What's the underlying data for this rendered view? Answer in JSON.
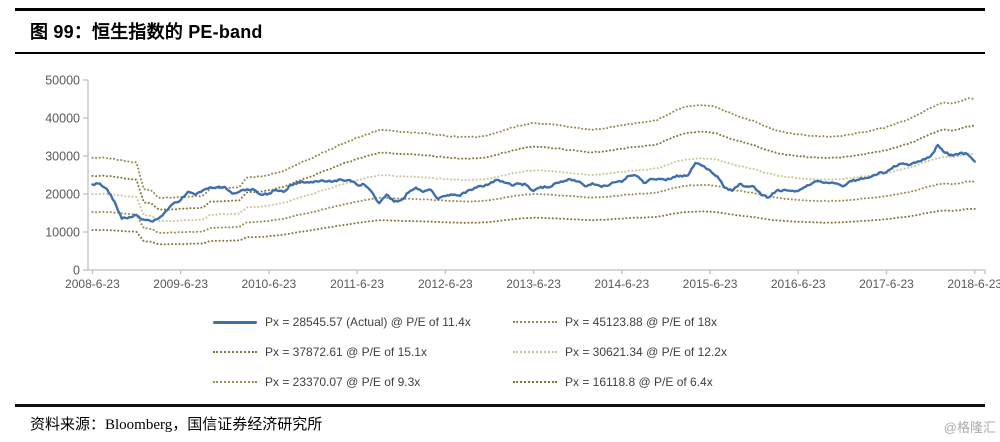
{
  "figure": {
    "title": "图 99：恒生指数的 PE-band"
  },
  "colors": {
    "actual_line": "#3f6fad",
    "band_18x": "#98894c",
    "band_15_1x": "#85763a",
    "band_12_2x": "#cec397",
    "band_9_3x": "#9a8b4e",
    "band_6_4x": "#85763a",
    "axis": "#bfbfbf",
    "axis_label": "#595959"
  },
  "legend": {
    "items": [
      {
        "label": "Px = 28545.57 (Actual) @ P/E of 11.4x",
        "style": "solid",
        "color": "#3f6fad"
      },
      {
        "label": "Px = 45123.88 @ P/E of 18x",
        "style": "dotted",
        "color": "#98894c"
      },
      {
        "label": "Px = 37872.61 @ P/E of 15.1x",
        "style": "dotted",
        "color": "#85763a"
      },
      {
        "label": "Px = 30621.34 @ P/E of 12.2x",
        "style": "dotted",
        "color": "#cec397"
      },
      {
        "label": "Px = 23370.07 @ P/E of 9.3x",
        "style": "dotted",
        "color": "#9a8b4e"
      },
      {
        "label": "Px = 16118.8 @ P/E of 6.4x",
        "style": "dotted",
        "color": "#85763a"
      }
    ]
  },
  "footer": {
    "source": "资料来源：Bloomberg，国信证券经济研究所",
    "watermark": "@格隆汇"
  },
  "chart_data": {
    "type": "line",
    "title": "恒生指数的 PE-band",
    "xlabel": "",
    "ylabel": "",
    "ylim": [
      0,
      50000
    ],
    "y_ticks": [
      0,
      10000,
      20000,
      30000,
      40000,
      50000
    ],
    "x_tick_labels": [
      "2008-6-23",
      "2009-6-23",
      "2010-6-23",
      "2011-6-23",
      "2012-6-23",
      "2013-6-23",
      "2014-6-23",
      "2015-6-23",
      "2016-6-23",
      "2017-6-23",
      "2018-6-23"
    ],
    "grid": false,
    "legend_position": "bottom",
    "sampling": "monthly from 2008-06 to 2018-06 (121 points)",
    "band_multiples": [
      18,
      15.1,
      12.2,
      9.3,
      6.4
    ],
    "band_colors": [
      "#98894c",
      "#85763a",
      "#cec397",
      "#9a8b4e",
      "#85763a"
    ],
    "series": [
      {
        "name": "Px (Actual) @ P/E of 11.4x",
        "style": "solid",
        "color": "#3f6fad",
        "end_value": 28545.57,
        "values": [
          22500,
          22731,
          21261,
          18016,
          13500,
          13888,
          14387,
          13278,
          12812,
          13576,
          15521,
          17500,
          18378,
          20573,
          19724,
          20955,
          21753,
          21821,
          21873,
          20122,
          20608,
          21239,
          21109,
          19765,
          20129,
          21030,
          20537,
          22358,
          23096,
          23007,
          23035,
          23447,
          23338,
          23528,
          23721,
          23684,
          22398,
          22440,
          20535,
          17592,
          19865,
          17989,
          18434,
          20390,
          21680,
          20556,
          21094,
          18629,
          19441,
          19796,
          19482,
          20840,
          21641,
          22030,
          22656,
          23729,
          23020,
          22299,
          22737,
          22392,
          20803,
          21883,
          21731,
          22859,
          23206,
          23881,
          23306,
          22035,
          22836,
          22151,
          22133,
          23081,
          23190,
          24756,
          24742,
          22932,
          23998,
          23987,
          23605,
          24507,
          24823,
          24900,
          28133,
          27424,
          26250,
          24636,
          21670,
          20846,
          22640,
          21996,
          21914,
          19683,
          19112,
          20777,
          21067,
          20815,
          20794,
          21891,
          22977,
          23297,
          22935,
          22790,
          22001,
          23361,
          23741,
          24112,
          24615,
          25661,
          25765,
          27324,
          27970,
          27554,
          28246,
          29177,
          29919,
          32887,
          30845,
          30093,
          30808,
          30469,
          28546
        ]
      }
    ],
    "implied_eps": {
      "note": "PE bands are implied_eps × band_multiples; dotted step lines",
      "values": [
        1640,
        1640,
        1635,
        1625,
        1605,
        1585,
        1570,
        1180,
        1165,
        1060,
        1058,
        1062,
        1068,
        1074,
        1080,
        1086,
        1190,
        1196,
        1202,
        1210,
        1216,
        1350,
        1358,
        1368,
        1390,
        1420,
        1450,
        1500,
        1555,
        1600,
        1640,
        1700,
        1745,
        1795,
        1845,
        1890,
        1935,
        1975,
        2010,
        2045,
        2045,
        2030,
        2020,
        2015,
        2010,
        2000,
        1990,
        1975,
        1960,
        1950,
        1945,
        1940,
        1945,
        1955,
        1975,
        2010,
        2045,
        2080,
        2110,
        2135,
        2150,
        2145,
        2135,
        2120,
        2105,
        2090,
        2075,
        2060,
        2050,
        2058,
        2075,
        2095,
        2115,
        2135,
        2148,
        2158,
        2175,
        2200,
        2255,
        2315,
        2360,
        2390,
        2400,
        2410,
        2400,
        2378,
        2330,
        2282,
        2240,
        2208,
        2178,
        2120,
        2080,
        2042,
        2020,
        2000,
        1982,
        1970,
        1960,
        1953,
        1950,
        1954,
        1962,
        1980,
        2000,
        2020,
        2042,
        2062,
        2090,
        2128,
        2168,
        2200,
        2250,
        2318,
        2370,
        2420,
        2448,
        2432,
        2460,
        2510,
        2507
      ]
    },
    "band_end_values": [
      45123.88,
      37872.61,
      30621.34,
      23370.07,
      16118.8
    ]
  }
}
